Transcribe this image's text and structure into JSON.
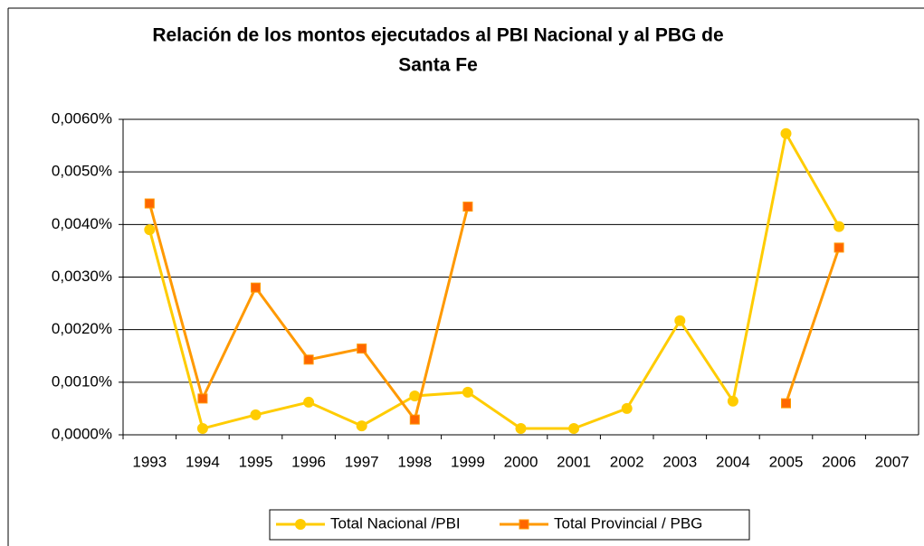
{
  "chart_data": {
    "type": "line",
    "title": [
      "Relación de los montos ejecutados al PBI Nacional y al PBG de",
      "Santa Fe"
    ],
    "categories": [
      "1993",
      "1994",
      "1995",
      "1996",
      "1997",
      "1998",
      "1999",
      "2000",
      "2001",
      "2002",
      "2003",
      "2004",
      "2005",
      "2006",
      "2007"
    ],
    "series": [
      {
        "name": "Total Nacional /PBI",
        "color": "#FFCC00",
        "marker": "circle",
        "values": [
          0.0039,
          0.00012,
          0.00038,
          0.00062,
          0.00017,
          0.00074,
          0.00081,
          0.00012,
          0.00012,
          0.0005,
          0.00217,
          0.00064,
          0.00573,
          0.00396,
          null
        ]
      },
      {
        "name": "Total Provincial / PBG",
        "color": "#FF9900",
        "marker": "square",
        "values": [
          0.0044,
          0.00069,
          0.0028,
          0.00143,
          0.00164,
          0.00029,
          0.00434,
          null,
          null,
          null,
          null,
          null,
          0.0006,
          0.00356,
          null
        ]
      }
    ],
    "ylim": [
      0,
      0.006
    ],
    "yticks": [
      {
        "value": 0,
        "label": "0,0000%"
      },
      {
        "value": 0.001,
        "label": "0,0010%"
      },
      {
        "value": 0.002,
        "label": "0,0020%"
      },
      {
        "value": 0.003,
        "label": "0,0030%"
      },
      {
        "value": 0.004,
        "label": "0,0040%"
      },
      {
        "value": 0.005,
        "label": "0,0050%"
      },
      {
        "value": 0.006,
        "label": "0,0060%"
      }
    ],
    "grid": true,
    "legend": "bottom"
  }
}
